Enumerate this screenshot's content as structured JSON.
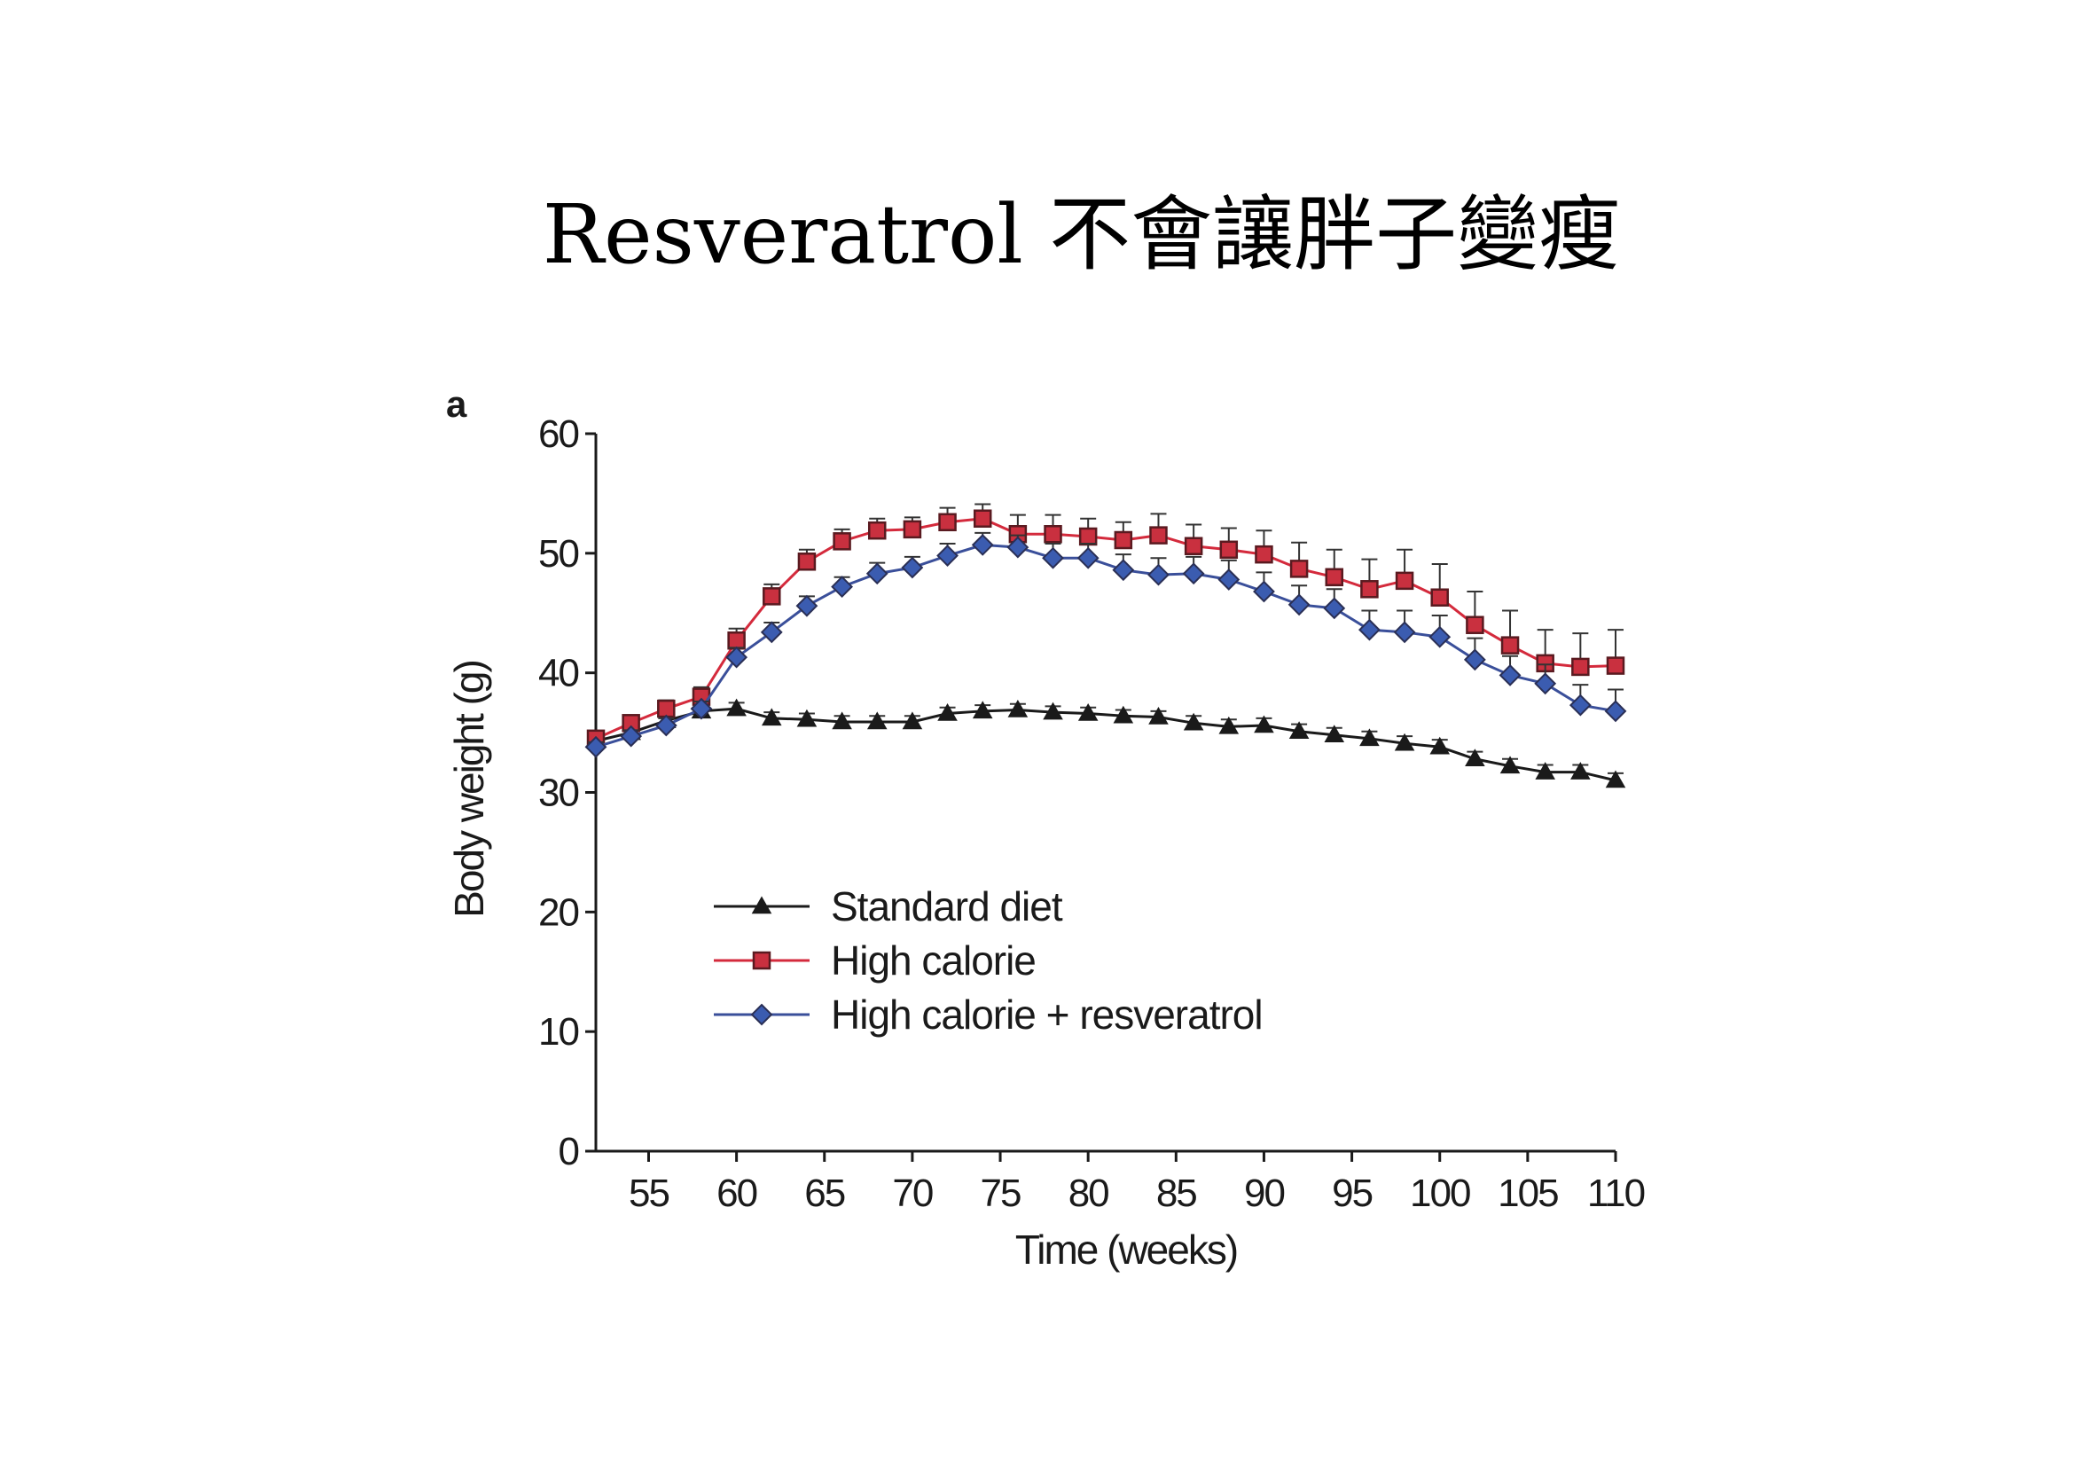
{
  "page": {
    "title": "Resveratrol 不會讓胖子變瘦"
  },
  "chart_data": {
    "type": "line",
    "panel_label": "a",
    "title": "",
    "xlabel": "Time (weeks)",
    "ylabel": "Body weight (g)",
    "xlim": [
      52,
      110
    ],
    "ylim": [
      0,
      60
    ],
    "x_ticks": [
      55,
      60,
      65,
      70,
      75,
      80,
      85,
      90,
      95,
      100,
      105,
      110
    ],
    "y_ticks": [
      0,
      10,
      20,
      30,
      40,
      50,
      60
    ],
    "legend_position": "lower-left-inside",
    "x": [
      52,
      54,
      56,
      58,
      60,
      62,
      64,
      66,
      68,
      70,
      72,
      74,
      76,
      78,
      80,
      82,
      84,
      86,
      88,
      90,
      92,
      94,
      96,
      98,
      100,
      102,
      104,
      106,
      108,
      110
    ],
    "series": [
      {
        "name": "Standard diet",
        "marker": "triangle",
        "color": "#1a1a1a",
        "values": [
          34.3,
          35.0,
          36.0,
          36.8,
          37.0,
          36.2,
          36.1,
          35.9,
          35.9,
          35.9,
          36.6,
          36.8,
          36.9,
          36.7,
          36.6,
          36.4,
          36.3,
          35.8,
          35.5,
          35.6,
          35.1,
          34.8,
          34.5,
          34.1,
          33.8,
          32.8,
          32.2,
          31.7,
          31.7,
          31.0
        ],
        "errors": [
          0.4,
          0.4,
          0.4,
          0.5,
          0.5,
          0.5,
          0.5,
          0.5,
          0.5,
          0.5,
          0.5,
          0.5,
          0.5,
          0.5,
          0.5,
          0.5,
          0.5,
          0.6,
          0.6,
          0.6,
          0.6,
          0.6,
          0.6,
          0.6,
          0.6,
          0.6,
          0.6,
          0.6,
          0.6,
          0.6
        ]
      },
      {
        "name": "High calorie",
        "marker": "square",
        "color": "#d42a3c",
        "values": [
          34.5,
          35.8,
          37.0,
          38.0,
          42.7,
          46.4,
          49.3,
          51.0,
          51.9,
          52.0,
          52.6,
          52.9,
          51.6,
          51.6,
          51.4,
          51.1,
          51.5,
          50.6,
          50.3,
          49.9,
          48.7,
          48.0,
          47.0,
          47.7,
          46.3,
          44.0,
          42.3,
          40.8,
          40.5,
          40.6
        ],
        "errors": [
          0.5,
          0.6,
          0.7,
          0.8,
          1.0,
          1.0,
          1.0,
          1.0,
          1.0,
          1.0,
          1.2,
          1.2,
          1.6,
          1.6,
          1.5,
          1.5,
          1.8,
          1.8,
          1.8,
          2.0,
          2.2,
          2.3,
          2.5,
          2.6,
          2.8,
          2.8,
          2.9,
          2.8,
          2.8,
          3.0
        ]
      },
      {
        "name": "High calorie + resveratrol",
        "marker": "diamond",
        "color": "#3a4f9a",
        "values": [
          33.8,
          34.7,
          35.6,
          37.0,
          41.3,
          43.4,
          45.6,
          47.2,
          48.3,
          48.8,
          49.8,
          50.7,
          50.5,
          49.6,
          49.6,
          48.6,
          48.2,
          48.3,
          47.8,
          46.8,
          45.7,
          45.4,
          43.6,
          43.4,
          43.0,
          41.1,
          39.8,
          39.1,
          37.3,
          36.8
        ],
        "errors": [
          0.4,
          0.5,
          0.6,
          0.6,
          0.8,
          0.8,
          0.8,
          0.8,
          0.9,
          0.9,
          1.0,
          1.0,
          1.0,
          1.2,
          1.2,
          1.3,
          1.4,
          1.4,
          1.6,
          1.6,
          1.6,
          1.6,
          1.6,
          1.8,
          1.8,
          1.8,
          1.6,
          1.6,
          1.7,
          1.8
        ]
      }
    ]
  }
}
